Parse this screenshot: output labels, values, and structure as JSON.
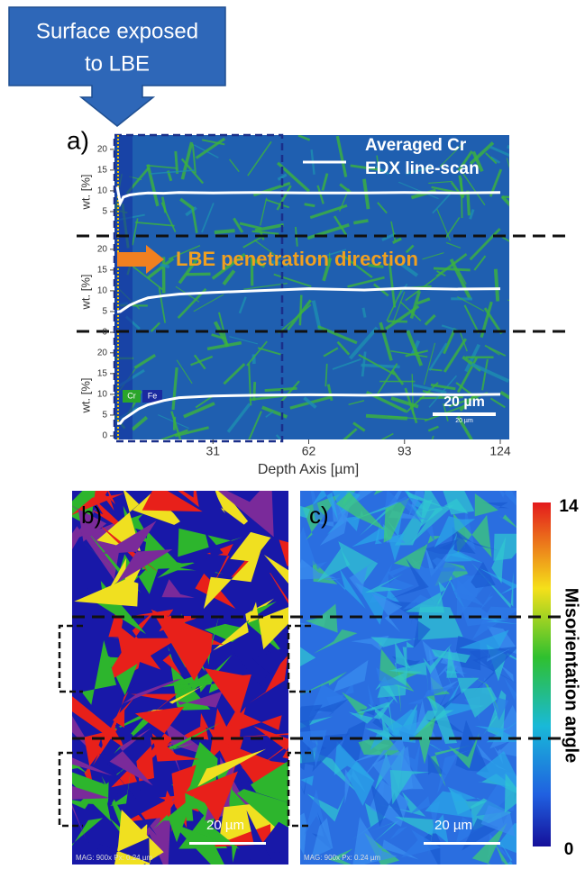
{
  "callout": [
    "Surface exposed",
    "to LBE"
  ],
  "panel_a": {
    "label": "a)",
    "legend": [
      "Averaged Cr",
      "EDX line-scan"
    ],
    "annotation": "LBE penetration direction",
    "element_tags": [
      "Cr",
      "Fe"
    ],
    "scale_bar": "20 µm",
    "scale_bar_small": "20 µm",
    "x_axis": {
      "label": "Depth Axis [µm]",
      "xlim": [
        0,
        124
      ],
      "xticks": [
        31,
        62,
        93,
        124
      ]
    },
    "depth": [
      0,
      1,
      2,
      4,
      7,
      10,
      15,
      20,
      31,
      45,
      62,
      80,
      93,
      110,
      124
    ],
    "strips": [
      {
        "ylabel": "wt. [%]",
        "ylim": [
          0,
          23
        ],
        "yticks": [
          5,
          10,
          15,
          20
        ],
        "values": [
          11,
          7,
          8.5,
          9,
          9.3,
          9.5,
          9.4,
          9.6,
          9.5,
          9.6,
          9.5,
          9.5,
          9.6,
          9.5,
          9.6
        ]
      },
      {
        "ylabel": "wt. [%]",
        "ylim": [
          0,
          23
        ],
        "yticks": [
          0,
          5,
          10,
          15,
          20
        ],
        "values": [
          5,
          5,
          5.5,
          6.5,
          7.5,
          8.3,
          8.8,
          9.2,
          9.6,
          10,
          10.5,
          10.2,
          10.6,
          10.4,
          10.5
        ]
      },
      {
        "ylabel": "wt. [%]",
        "ylim": [
          0,
          23
        ],
        "yticks": [
          0,
          5,
          10,
          15,
          20
        ],
        "values": [
          3,
          3,
          4,
          5,
          6.5,
          7.5,
          8.5,
          9.2,
          9.6,
          9.8,
          9.9,
          9.8,
          10,
          9.9,
          10
        ]
      }
    ]
  },
  "panel_b": {
    "label": "b)",
    "scale_bar": "20 µm",
    "footer": "MAG: 900x  Px: 0.24 µm"
  },
  "panel_c": {
    "label": "c)",
    "scale_bar": "20 µm",
    "footer": "MAG: 900x  Px: 0.24 µm"
  },
  "colorbar": {
    "max": "14",
    "label": "Misorientation angle",
    "min": "0"
  }
}
